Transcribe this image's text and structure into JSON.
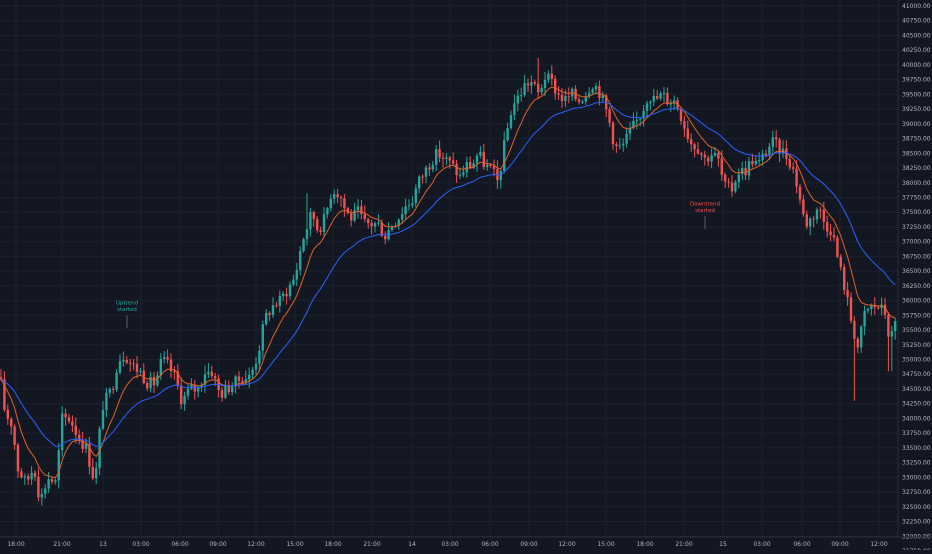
{
  "colors": {
    "background": "#131722",
    "grid": "#1c2130",
    "axis_text": "#b2b5be",
    "bull": "#26a69a",
    "bear": "#ef5350",
    "ema_fast": "#e0622a",
    "ema_slow": "#2962ff",
    "annotation_up": "#26a69a",
    "annotation_down": "#ef5350"
  },
  "chart_data": {
    "type": "candlestick",
    "title": "",
    "xlabel": "",
    "ylabel": "",
    "ylim": [
      31650,
      41100
    ],
    "yticks": [
      31750,
      32000,
      32250,
      32500,
      32750,
      33000,
      33250,
      33500,
      33750,
      34000,
      34250,
      34500,
      34750,
      35000,
      35250,
      35500,
      35750,
      36000,
      36250,
      36500,
      36750,
      37000,
      37250,
      37500,
      37750,
      38000,
      38250,
      38500,
      38750,
      39000,
      39250,
      39500,
      39750,
      40000,
      40250,
      40500,
      40750,
      41000
    ],
    "ytick_labels": [
      "31750.00",
      "32000.00",
      "32250.00",
      "32500.00",
      "32750.00",
      "33000.00",
      "33250.00",
      "33500.00",
      "33750.00",
      "34000.00",
      "34250.00",
      "34500.00",
      "34750.00",
      "35000.00",
      "35250.00",
      "35500.00",
      "35750.00",
      "36000.00",
      "36250.00",
      "36500.00",
      "36750.00",
      "37000.00",
      "37250.00",
      "37500.00",
      "37750.00",
      "38000.00",
      "38250.00",
      "38500.00",
      "38750.00",
      "39000.00",
      "39250.00",
      "39500.00",
      "39750.00",
      "40000.00",
      "40250.00",
      "40500.00",
      "40750.00",
      "41000.00"
    ],
    "xtick_labels": [
      "18:00",
      "21:00",
      "13",
      "03:00",
      "06:00",
      "09:00",
      "12:00",
      "15:00",
      "18:00",
      "21:00",
      "14",
      "03:00",
      "06:00",
      "09:00",
      "12:00",
      "15:00",
      "18:00",
      "21:00",
      "15",
      "03:00",
      "06:00",
      "09:00",
      "12:00"
    ],
    "key_points": [
      [
        0,
        34700
      ],
      [
        5,
        34100
      ],
      [
        12,
        33900
      ],
      [
        18,
        33150
      ],
      [
        26,
        32900
      ],
      [
        34,
        33200
      ],
      [
        40,
        32600
      ],
      [
        48,
        33000
      ],
      [
        56,
        32900
      ],
      [
        62,
        34000
      ],
      [
        70,
        34000
      ],
      [
        78,
        33700
      ],
      [
        86,
        33500
      ],
      [
        95,
        32900
      ],
      [
        102,
        34200
      ],
      [
        112,
        34500
      ],
      [
        118,
        35000
      ],
      [
        125,
        35100
      ],
      [
        132,
        34900
      ],
      [
        140,
        34800
      ],
      [
        148,
        34600
      ],
      [
        155,
        34600
      ],
      [
        162,
        35000
      ],
      [
        168,
        34900
      ],
      [
        175,
        34700
      ],
      [
        182,
        34300
      ],
      [
        190,
        34500
      ],
      [
        198,
        34500
      ],
      [
        205,
        34800
      ],
      [
        212,
        34800
      ],
      [
        220,
        34400
      ],
      [
        226,
        34500
      ],
      [
        235,
        34600
      ],
      [
        242,
        34700
      ],
      [
        250,
        34700
      ],
      [
        258,
        35100
      ],
      [
        265,
        35700
      ],
      [
        272,
        35900
      ],
      [
        280,
        36000
      ],
      [
        288,
        36200
      ],
      [
        295,
        36400
      ],
      [
        302,
        37000
      ],
      [
        306,
        37200
      ],
      [
        312,
        37500
      ],
      [
        318,
        37200
      ],
      [
        325,
        37400
      ],
      [
        332,
        37900
      ],
      [
        340,
        37800
      ],
      [
        346,
        37500
      ],
      [
        352,
        37400
      ],
      [
        358,
        37500
      ],
      [
        365,
        37300
      ],
      [
        372,
        37300
      ],
      [
        378,
        37300
      ],
      [
        385,
        37100
      ],
      [
        392,
        37300
      ],
      [
        398,
        37400
      ],
      [
        405,
        37600
      ],
      [
        412,
        37700
      ],
      [
        418,
        38000
      ],
      [
        425,
        38200
      ],
      [
        432,
        38400
      ],
      [
        438,
        38500
      ],
      [
        445,
        38400
      ],
      [
        452,
        38300
      ],
      [
        460,
        38100
      ],
      [
        466,
        38300
      ],
      [
        472,
        38300
      ],
      [
        478,
        38500
      ],
      [
        485,
        38300
      ],
      [
        492,
        38200
      ],
      [
        498,
        38000
      ],
      [
        505,
        38700
      ],
      [
        512,
        39300
      ],
      [
        520,
        39500
      ],
      [
        526,
        39700
      ],
      [
        532,
        39700
      ],
      [
        538,
        39500
      ],
      [
        545,
        39800
      ],
      [
        552,
        39700
      ],
      [
        558,
        39500
      ],
      [
        565,
        39400
      ],
      [
        572,
        39500
      ],
      [
        578,
        39400
      ],
      [
        585,
        39500
      ],
      [
        592,
        39700
      ],
      [
        598,
        39600
      ],
      [
        605,
        39300
      ],
      [
        610,
        39000
      ],
      [
        615,
        38600
      ],
      [
        622,
        38600
      ],
      [
        628,
        38800
      ],
      [
        635,
        39000
      ],
      [
        642,
        39200
      ],
      [
        648,
        39500
      ],
      [
        655,
        39400
      ],
      [
        662,
        39500
      ],
      [
        668,
        39400
      ],
      [
        675,
        39400
      ],
      [
        682,
        39100
      ],
      [
        690,
        38700
      ],
      [
        698,
        38600
      ],
      [
        705,
        38400
      ],
      [
        712,
        38500
      ],
      [
        718,
        38400
      ],
      [
        722,
        38100
      ],
      [
        726,
        37900
      ],
      [
        732,
        37900
      ],
      [
        738,
        38200
      ],
      [
        745,
        38200
      ],
      [
        752,
        38400
      ],
      [
        758,
        38300
      ],
      [
        765,
        38500
      ],
      [
        772,
        38700
      ],
      [
        778,
        38600
      ],
      [
        785,
        38500
      ],
      [
        792,
        38300
      ],
      [
        798,
        37900
      ],
      [
        805,
        37300
      ],
      [
        812,
        37400
      ],
      [
        818,
        37600
      ],
      [
        825,
        37300
      ],
      [
        832,
        37200
      ],
      [
        838,
        36700
      ],
      [
        845,
        36200
      ],
      [
        852,
        35600
      ],
      [
        858,
        35200
      ],
      [
        865,
        35800
      ],
      [
        872,
        35900
      ],
      [
        878,
        35900
      ],
      [
        885,
        35800
      ],
      [
        890,
        35300
      ],
      [
        895,
        35600
      ],
      [
        898,
        35700
      ]
    ],
    "candle_x_range": [
      0,
      898
    ],
    "candle_spacing": 3.4,
    "annotations": [
      {
        "text": "Uptrend started",
        "x": 127,
        "y_value": 35700
      },
      {
        "text": "Downtrend started",
        "x": 705,
        "y_value": 37380
      }
    ],
    "series": [
      {
        "name": "",
        "kind": "ema",
        "color": "#e0622a",
        "period": 9
      },
      {
        "name": "",
        "kind": "ema",
        "color": "#2962ff",
        "period": 26
      }
    ],
    "grid": true,
    "legend": "none"
  }
}
